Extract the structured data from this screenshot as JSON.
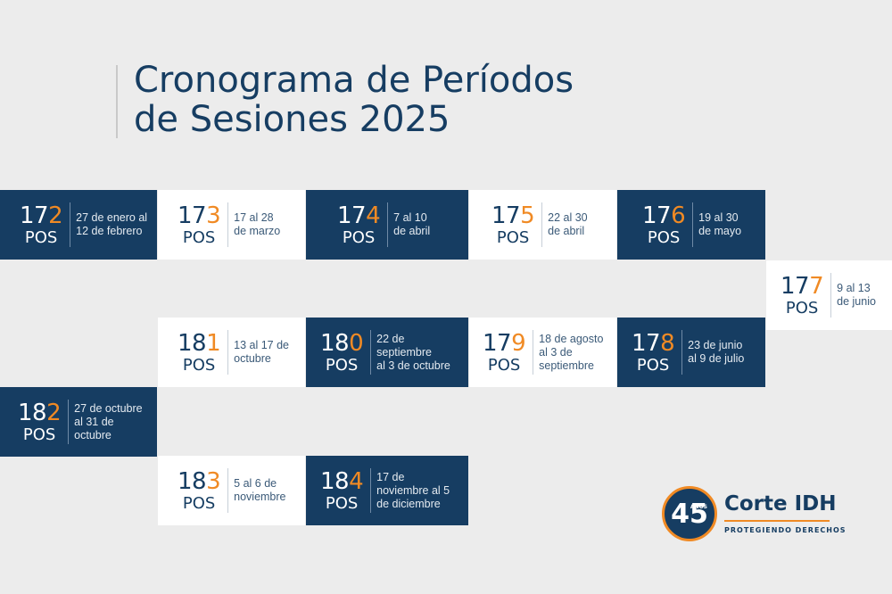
{
  "title": {
    "line1": "Cronograma de Períodos",
    "line2": "de Sesiones 2025"
  },
  "pos_label": "POS",
  "sessions": [
    {
      "prefix": "17",
      "last": "2",
      "dates": [
        "27 de enero al",
        "12 de febrero"
      ]
    },
    {
      "prefix": "17",
      "last": "3",
      "dates": [
        "17 al 28",
        "de marzo"
      ]
    },
    {
      "prefix": "17",
      "last": "4",
      "dates": [
        "7 al 10",
        "de abril"
      ]
    },
    {
      "prefix": "17",
      "last": "5",
      "dates": [
        "22 al 30",
        "de abril"
      ]
    },
    {
      "prefix": "17",
      "last": "6",
      "dates": [
        "19 al 30",
        "de mayo"
      ]
    },
    {
      "prefix": "17",
      "last": "7",
      "dates": [
        "9 al 13",
        "de junio"
      ]
    },
    {
      "prefix": "17",
      "last": "8",
      "dates": [
        "23 de junio",
        "al 9 de julio"
      ]
    },
    {
      "prefix": "17",
      "last": "9",
      "dates": [
        "18 de agosto",
        "al 3 de",
        "septiembre"
      ]
    },
    {
      "prefix": "18",
      "last": "0",
      "dates": [
        "22 de",
        "septiembre",
        "al 3 de octubre"
      ]
    },
    {
      "prefix": "18",
      "last": "1",
      "dates": [
        "13 al 17 de",
        "octubre"
      ]
    },
    {
      "prefix": "18",
      "last": "2",
      "dates": [
        "27 de octubre",
        "al 31 de",
        "octubre"
      ]
    },
    {
      "prefix": "18",
      "last": "3",
      "dates": [
        "5 al 6 de",
        "noviembre"
      ]
    },
    {
      "prefix": "18",
      "last": "4",
      "dates": [
        "17 de",
        "noviembre al 5",
        "de diciembre"
      ]
    }
  ],
  "logo": {
    "badge_number": "45",
    "badge_small": "AÑOS",
    "name": "Corte IDH",
    "tagline": "PROTEGIENDO DERECHOS"
  },
  "colors": {
    "navy": "#163d62",
    "orange": "#f08a24",
    "background": "#ececec"
  }
}
